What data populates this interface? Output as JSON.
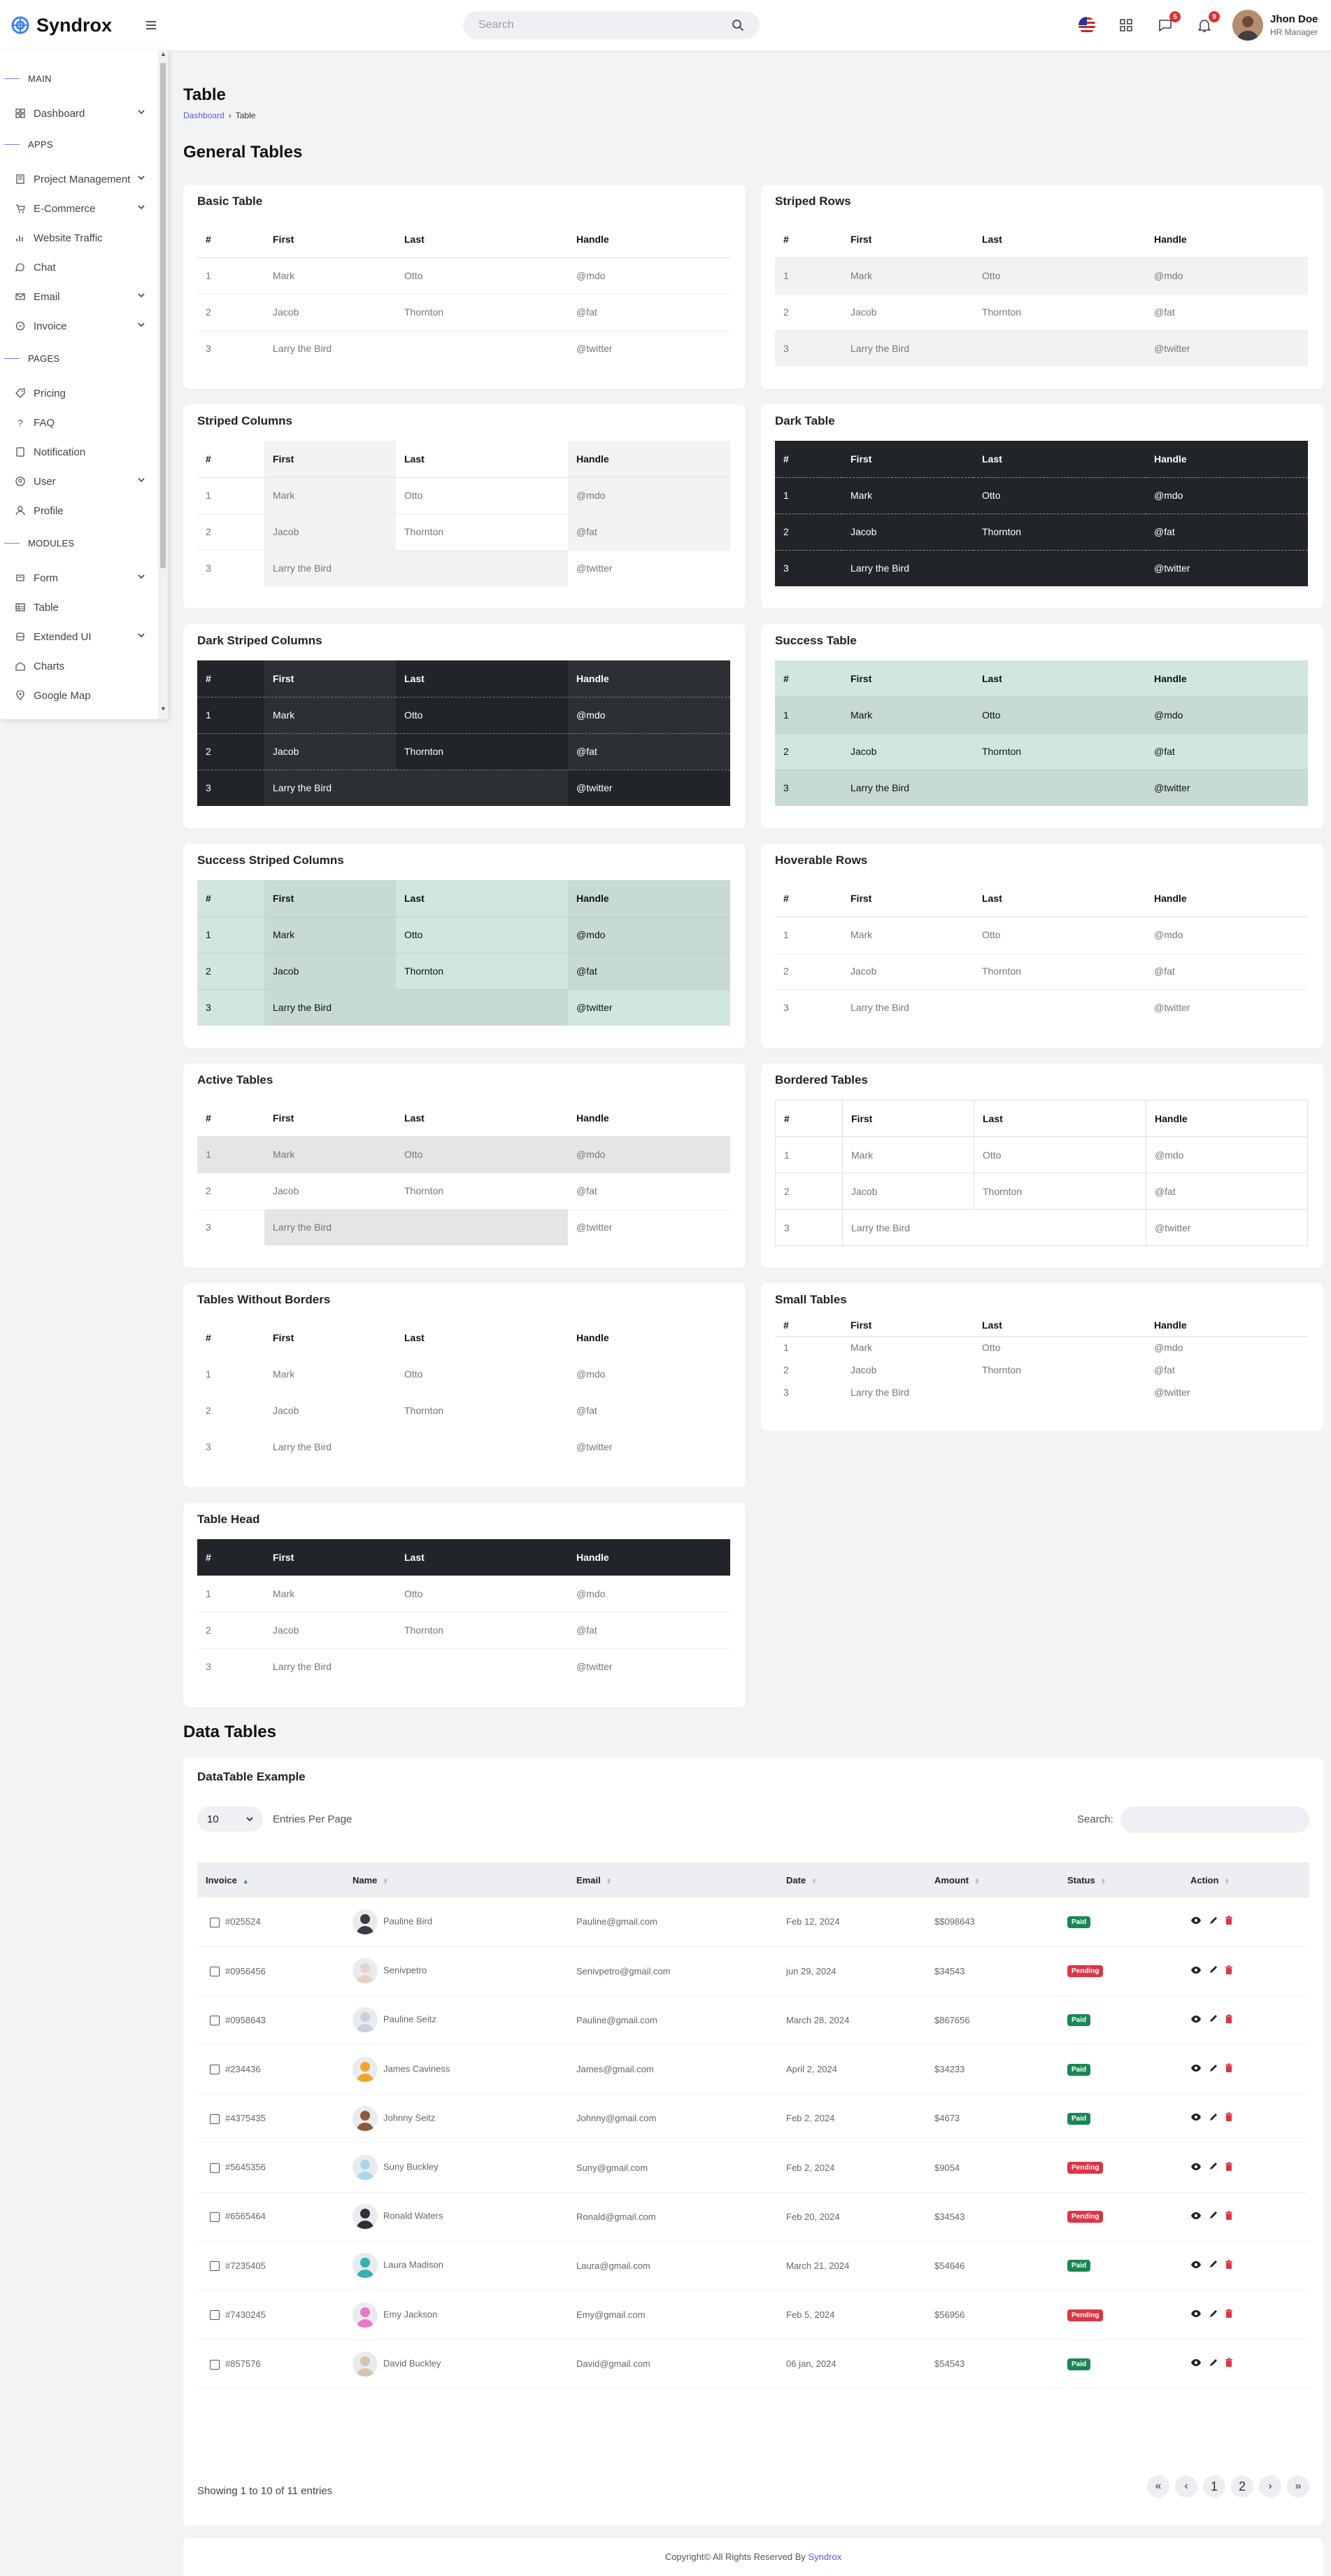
{
  "app": {
    "name": "Syndrox",
    "brand_color": "#3b82f6"
  },
  "header": {
    "search_placeholder": "Search",
    "messages_count": "5",
    "notifications_count": "9",
    "user_name": "Jhon Doe",
    "user_role": "HR Manager"
  },
  "sidebar": {
    "sections": [
      {
        "label": "MAIN"
      },
      {
        "label": "APPS"
      },
      {
        "label": "PAGES"
      },
      {
        "label": "MODULES"
      }
    ],
    "items": [
      {
        "label": "Dashboard",
        "icon": "grid-icon"
      },
      {
        "label": "Project Management",
        "icon": "book-icon"
      },
      {
        "label": "E-Commerce",
        "icon": "cart-icon"
      },
      {
        "label": "Website Traffic",
        "icon": "bar-chart-icon"
      },
      {
        "label": "Chat",
        "icon": "chat-icon"
      },
      {
        "label": "Email",
        "icon": "mail-icon"
      },
      {
        "label": "Invoice",
        "icon": "invoice-icon"
      },
      {
        "label": "Pricing",
        "icon": "tag-icon"
      },
      {
        "label": "FAQ",
        "icon": "question-icon"
      },
      {
        "label": "Notification",
        "icon": "doc-icon"
      },
      {
        "label": "User",
        "icon": "user-circle-icon"
      },
      {
        "label": "Profile",
        "icon": "person-icon"
      },
      {
        "label": "Form",
        "icon": "form-icon"
      },
      {
        "label": "Table",
        "icon": "table-icon"
      },
      {
        "label": "Extended UI",
        "icon": "layers-icon"
      },
      {
        "label": "Charts",
        "icon": "chart-icon"
      },
      {
        "label": "Google Map",
        "icon": "map-pin-icon"
      }
    ]
  },
  "page": {
    "title": "Table",
    "breadcrumb_home": "Dashboard",
    "breadcrumb_current": "Table",
    "general_title": "General Tables",
    "data_title": "Data Tables"
  },
  "table_columns": [
    "#",
    "First",
    "Last",
    "Handle"
  ],
  "table_rows": [
    [
      "1",
      "Mark",
      "Otto",
      "@mdo"
    ],
    [
      "2",
      "Jacob",
      "Thornton",
      "@fat"
    ],
    [
      "3",
      "Larry the Bird",
      "",
      "@twitter"
    ]
  ],
  "cards": [
    {
      "title": "Basic Table"
    },
    {
      "title": "Striped Rows"
    },
    {
      "title": "Striped Columns"
    },
    {
      "title": "Dark Table"
    },
    {
      "title": "Dark Striped Columns"
    },
    {
      "title": "Success Table"
    },
    {
      "title": "Success Striped Columns"
    },
    {
      "title": "Hoverable Rows"
    },
    {
      "title": "Active Tables"
    },
    {
      "title": "Bordered Tables"
    },
    {
      "title": "Tables Without Borders"
    },
    {
      "title": "Small Tables"
    },
    {
      "title": "Table Head"
    }
  ],
  "datatable": {
    "title": "DataTable Example",
    "entries_value": "10",
    "entries_label": "Entries Per Page",
    "search_label": "Search:",
    "columns": [
      "Invoice",
      "Name",
      "Email",
      "Date",
      "Amount",
      "Status",
      "Action"
    ],
    "rows": [
      {
        "invoice": "#025524",
        "name": "Pauline Bird",
        "email": "Pauline@gmail.com",
        "date": "Feb 12, 2024",
        "amount": "$$098643",
        "status": "Paid"
      },
      {
        "invoice": "#0956456",
        "name": "Senivpetro",
        "email": "Senivpetro@gmail.com",
        "date": "jun 29, 2024",
        "amount": "$34543",
        "status": "Pending"
      },
      {
        "invoice": "#0958643",
        "name": "Pauline Seitz",
        "email": "Pauline@gmail.com",
        "date": "March 28, 2024",
        "amount": "$867656",
        "status": "Paid"
      },
      {
        "invoice": "#234436",
        "name": "James Caviness",
        "email": "James@gmail.com",
        "date": "April 2, 2024",
        "amount": "$34233",
        "status": "Paid"
      },
      {
        "invoice": "#4375435",
        "name": "Johnny Seitz",
        "email": "Johnny@gmail.com",
        "date": "Feb 2, 2024",
        "amount": "$4673",
        "status": "Paid"
      },
      {
        "invoice": "#5645356",
        "name": "Suny Buckley",
        "email": "Suny@gmail.com",
        "date": "Feb 2, 2024",
        "amount": "$9054",
        "status": "Pending"
      },
      {
        "invoice": "#6565464",
        "name": "Ronald Waters",
        "email": "Ronald@gmail.com",
        "date": "Feb 20, 2024",
        "amount": "$34543",
        "status": "Pending"
      },
      {
        "invoice": "#7235405",
        "name": "Laura Madison",
        "email": "Laura@gmail.com",
        "date": "March 21, 2024",
        "amount": "$54646",
        "status": "Paid"
      },
      {
        "invoice": "#7430245",
        "name": "Emy Jackson",
        "email": "Emy@gmail.com",
        "date": "Feb 5, 2024",
        "amount": "$56956",
        "status": "Pending"
      },
      {
        "invoice": "#857576",
        "name": "David Buckley",
        "email": "David@gmail.com",
        "date": "06 jan, 2024",
        "amount": "$54543",
        "status": "Paid"
      }
    ],
    "info": "Showing 1 to 10 of 11 entries",
    "pages": [
      "«",
      "‹",
      "1",
      "2",
      "›",
      "»"
    ]
  },
  "footer": {
    "text": "Copyright© All Rights Reserved By ",
    "brand": "Syndrox"
  }
}
